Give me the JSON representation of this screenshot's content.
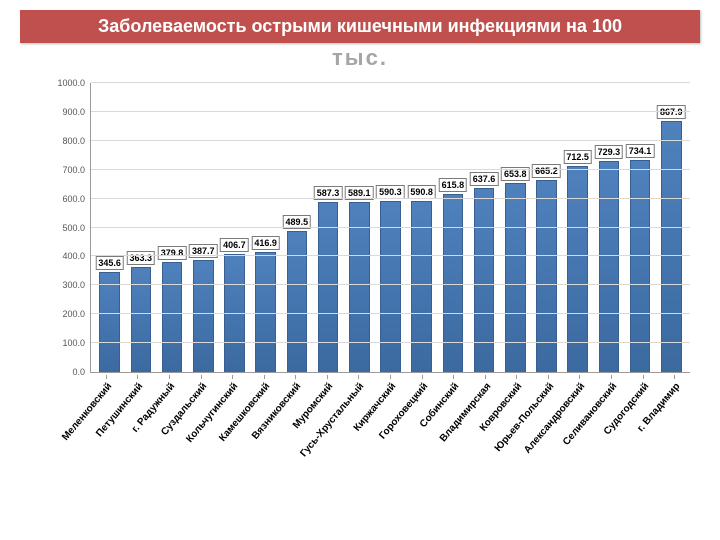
{
  "title": {
    "line1": "Заболеваемость острыми кишечными инфекциями на 100",
    "line2": "тыс.",
    "banner_color": "#c0504e",
    "banner_text_color": "#ffffff",
    "subtitle_color": "#a5a5a5"
  },
  "chart": {
    "type": "bar",
    "y_axis": {
      "min": 0,
      "max": 1000,
      "tick_step": 100,
      "tick_labels": [
        "0.0",
        "100.0",
        "200.0",
        "300.0",
        "400.0",
        "500.0",
        "600.0",
        "700.0",
        "800.0",
        "900.0",
        "1000.0"
      ],
      "label_fontsize": 9,
      "grid_color": "#d9d9d9",
      "axis_color": "#9a9a9a"
    },
    "bar_color": "#4f81bd",
    "bar_border_color": "#375f92",
    "value_label_border": "#7a7a7a",
    "value_label_bg": "#ffffff",
    "categories": [
      "Меленковский",
      "Петушинский",
      "г. Радужный",
      "Суздальский",
      "Кольчугинский",
      "Камешковский",
      "Вязниковский",
      "Муромский",
      "Гусь-Хрустальный",
      "Киржачский",
      "Гороховецкий",
      "Собинский",
      "Владимирская",
      "Ковровский",
      "Юрьев-Польский",
      "Александровский",
      "Селивановский",
      "Судогодский",
      "г. Владимир"
    ],
    "values": [
      345.6,
      363.3,
      379.8,
      387.7,
      406.7,
      416.9,
      489.5,
      587.3,
      589.1,
      590.3,
      590.8,
      615.8,
      637.6,
      653.8,
      665.2,
      712.5,
      729.3,
      734.1,
      867.9
    ],
    "value_labels": [
      "345.6",
      "363.3",
      "379.8",
      "387.7",
      "406.7",
      "416.9",
      "489.5",
      "587.3",
      "589.1",
      "590.3",
      "590.8",
      "615.8",
      "637.6",
      "653.8",
      "665.2",
      "712.5",
      "729.3",
      "734.1",
      "867.9"
    ],
    "xlabel_fontsize": 10,
    "value_label_fontsize": 9
  }
}
